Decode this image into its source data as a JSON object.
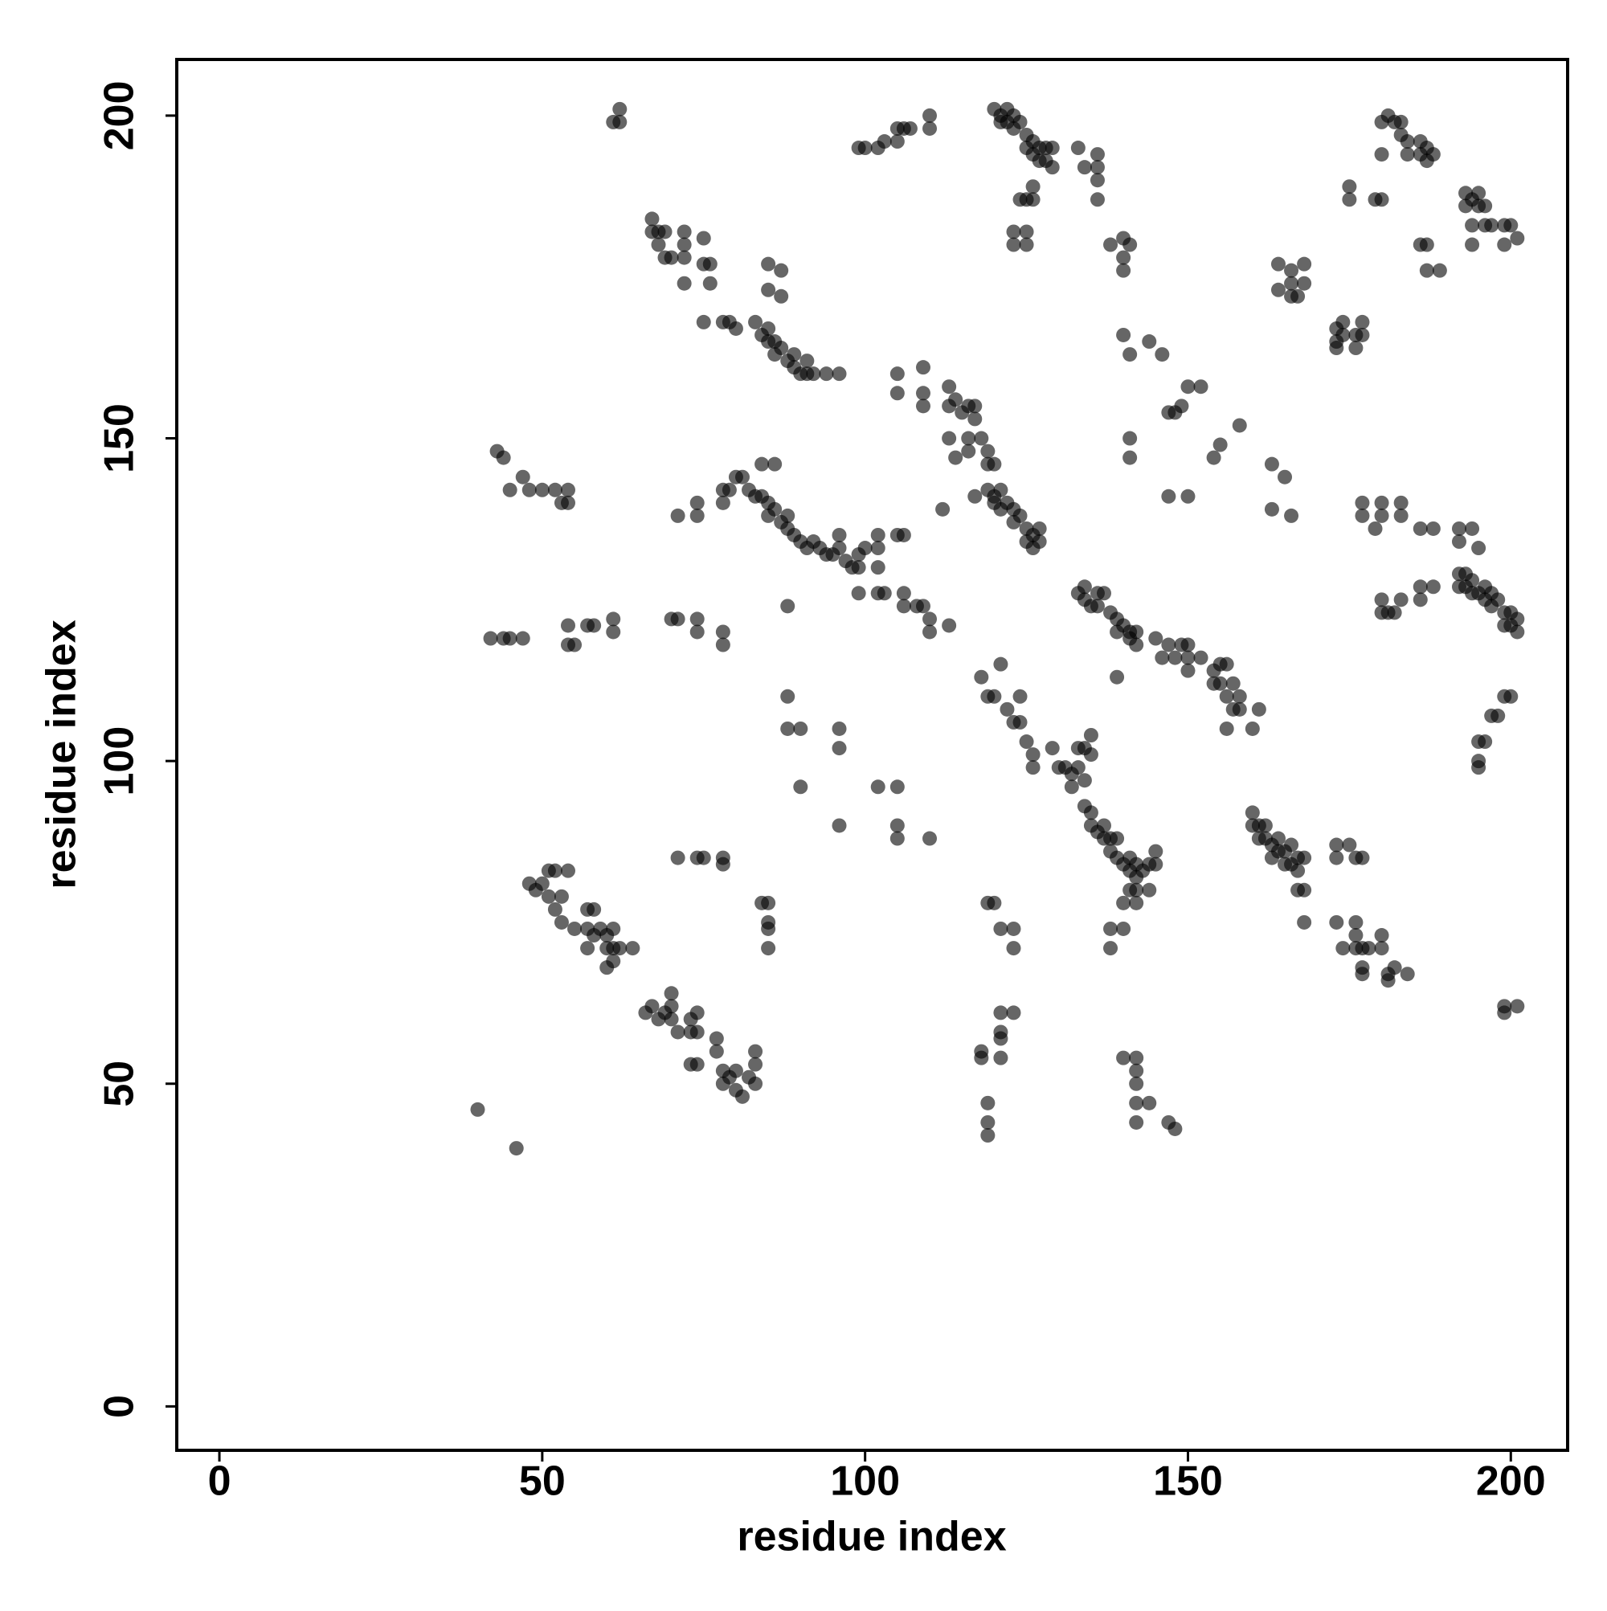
{
  "chart_data": {
    "type": "scatter",
    "xlabel": "residue index",
    "ylabel": "residue index",
    "color": "#000000",
    "alpha": 0.6,
    "xlim": [
      -6.6,
      208.8
    ],
    "ylim": [
      -6.8,
      208.7
    ],
    "xticks": [
      0,
      50,
      100,
      150,
      200
    ],
    "yticks": [
      0,
      50,
      100,
      150,
      200
    ],
    "x": [
      40,
      46,
      48,
      49,
      50,
      51,
      51,
      52,
      52,
      53,
      54,
      53,
      55,
      57,
      58,
      57,
      58,
      57,
      59,
      60,
      60,
      61,
      61,
      62,
      64,
      60,
      61,
      66,
      67,
      68,
      69,
      70,
      70,
      70,
      71,
      73,
      73,
      74,
      74,
      73,
      74,
      77,
      77,
      78,
      78,
      79,
      80,
      80,
      81,
      82,
      83,
      83,
      83,
      42,
      44,
      45,
      47,
      54,
      54,
      55,
      57,
      58,
      61,
      61,
      70,
      71,
      74,
      74,
      78,
      78,
      43,
      44,
      45,
      47,
      48,
      50,
      52,
      53,
      54,
      54,
      62,
      61,
      62,
      71,
      74,
      75,
      78,
      78,
      84,
      85,
      85,
      85,
      85,
      71,
      74,
      74,
      78,
      78,
      79,
      80,
      81,
      82,
      83,
      84,
      84,
      85,
      85,
      86,
      86,
      87,
      88,
      88,
      89,
      90,
      91,
      92,
      93,
      94,
      95,
      96,
      96,
      97,
      98,
      99,
      99,
      100,
      102,
      102,
      102,
      105,
      106,
      99,
      102,
      103,
      106,
      106,
      108,
      109,
      110,
      110,
      113,
      88,
      88,
      88,
      90,
      96,
      96,
      90,
      96,
      102,
      105,
      105,
      105,
      110,
      67,
      67,
      68,
      68,
      69,
      69,
      70,
      72,
      72,
      72,
      72,
      75,
      75,
      76,
      76,
      75,
      78,
      79,
      80,
      83,
      84,
      85,
      85,
      86,
      86,
      87,
      88,
      89,
      89,
      90,
      91,
      91,
      92,
      94,
      96,
      85,
      85,
      87,
      87,
      99,
      100,
      102,
      103,
      105,
      105,
      106,
      107,
      110,
      110,
      105,
      105,
      109,
      109,
      109,
      113,
      113,
      114,
      115,
      116,
      117,
      117,
      113,
      114,
      116,
      116,
      118,
      119,
      119,
      120,
      117,
      112,
      119,
      120,
      120,
      121,
      121,
      122,
      123,
      123,
      124,
      125,
      125,
      126,
      126,
      127,
      127,
      120,
      121,
      121,
      122,
      122,
      123,
      123,
      124,
      125,
      125,
      126,
      126,
      127,
      127,
      128,
      128,
      129,
      124,
      125,
      126,
      126,
      129,
      133,
      134,
      136,
      136,
      136,
      136,
      123,
      123,
      125,
      125,
      138,
      140,
      140,
      140,
      141,
      140,
      141,
      144,
      146,
      147,
      148,
      149,
      150,
      152,
      141,
      141,
      147,
      150,
      154,
      155,
      158,
      163,
      165,
      163,
      166,
      133,
      134,
      134,
      135,
      136,
      136,
      137,
      138,
      139,
      139,
      140,
      141,
      141,
      142,
      142,
      139,
      145,
      146,
      147,
      148,
      149,
      150,
      150,
      150,
      152,
      154,
      154,
      155,
      155,
      156,
      156,
      157,
      157,
      158,
      158,
      156,
      160,
      161,
      118,
      119,
      120,
      121,
      122,
      123,
      124,
      124,
      125,
      126,
      126,
      129,
      130,
      131,
      132,
      132,
      133,
      133,
      134,
      134,
      135,
      135,
      134,
      135,
      135,
      136,
      137,
      137,
      138,
      138,
      139,
      139,
      140,
      141,
      141,
      142,
      142,
      143,
      144,
      144,
      145,
      145,
      160,
      160,
      161,
      161,
      162,
      162,
      163,
      163,
      164,
      164,
      165,
      165,
      166,
      166,
      167,
      167,
      167,
      168,
      168,
      168,
      173,
      173,
      175,
      176,
      177,
      119,
      120,
      121,
      123,
      123,
      138,
      138,
      140,
      140,
      141,
      142,
      142,
      121,
      121,
      121,
      123,
      118,
      118,
      121,
      140,
      142,
      142,
      142,
      142,
      144,
      142,
      147,
      148,
      119,
      119,
      119,
      173,
      174,
      176,
      176,
      176,
      177,
      178,
      177,
      177,
      180,
      180,
      181,
      181,
      182,
      184,
      164,
      164,
      166,
      166,
      166,
      167,
      168,
      168,
      173,
      173,
      174,
      174,
      176,
      177,
      177,
      176,
      173,
      175,
      175,
      179,
      180,
      180,
      180,
      181,
      182,
      183,
      183,
      184,
      184,
      186,
      186,
      187,
      187,
      188,
      186,
      187,
      187,
      189,
      193,
      193,
      194,
      195,
      195,
      196,
      194,
      194,
      196,
      197,
      199,
      200,
      199,
      201,
      177,
      177,
      180,
      180,
      179,
      183,
      183,
      186,
      188,
      192,
      192,
      194,
      195,
      180,
      180,
      181,
      182,
      183,
      186,
      186,
      188,
      192,
      192,
      193,
      193,
      194,
      194,
      195,
      196,
      196,
      197,
      197,
      198,
      199,
      199,
      200,
      200,
      201,
      201,
      195,
      195,
      195,
      196,
      197,
      198,
      199,
      200,
      199,
      199,
      201
    ],
    "values": [
      46,
      40,
      81,
      80,
      81,
      79,
      83,
      83,
      77,
      79,
      83,
      75,
      74,
      77,
      77,
      74,
      73,
      71,
      74,
      73,
      71,
      71,
      74,
      71,
      71,
      68,
      69,
      61,
      62,
      60,
      61,
      60,
      62,
      64,
      58,
      60,
      58,
      58,
      61,
      53,
      53,
      57,
      55,
      52,
      50,
      51,
      49,
      52,
      48,
      51,
      50,
      53,
      55,
      119,
      119,
      119,
      119,
      121,
      118,
      118,
      121,
      121,
      120,
      122,
      122,
      122,
      122,
      120,
      120,
      118,
      148,
      147,
      142,
      144,
      142,
      142,
      142,
      140,
      142,
      140,
      201,
      199,
      199,
      85,
      85,
      85,
      85,
      84,
      78,
      78,
      75,
      74,
      71,
      138,
      140,
      138,
      140,
      142,
      142,
      144,
      144,
      142,
      141,
      146,
      141,
      140,
      138,
      146,
      139,
      137,
      138,
      136,
      135,
      134,
      133,
      134,
      133,
      132,
      132,
      133,
      135,
      131,
      130,
      130,
      132,
      133,
      133,
      130,
      135,
      135,
      135,
      126,
      126,
      126,
      126,
      124,
      124,
      124,
      122,
      120,
      121,
      124,
      110,
      105,
      105,
      105,
      102,
      96,
      90,
      96,
      96,
      90,
      88,
      88,
      184,
      182,
      182,
      180,
      178,
      182,
      178,
      182,
      180,
      178,
      174,
      181,
      177,
      177,
      174,
      168,
      168,
      168,
      167,
      168,
      166,
      167,
      165,
      165,
      163,
      164,
      162,
      163,
      161,
      160,
      162,
      160,
      160,
      160,
      160,
      177,
      173,
      176,
      172,
      195,
      195,
      195,
      196,
      196,
      198,
      198,
      198,
      198,
      200,
      157,
      160,
      157,
      155,
      161,
      158,
      155,
      156,
      154,
      155,
      155,
      153,
      150,
      147,
      150,
      148,
      150,
      148,
      146,
      146,
      141,
      139,
      142,
      141,
      140,
      142,
      139,
      140,
      139,
      137,
      138,
      136,
      134,
      135,
      133,
      134,
      136,
      201,
      200,
      199,
      201,
      199,
      198,
      200,
      199,
      197,
      195,
      196,
      194,
      195,
      193,
      195,
      193,
      192,
      187,
      187,
      187,
      189,
      195,
      195,
      192,
      194,
      192,
      190,
      187,
      182,
      180,
      182,
      180,
      180,
      181,
      178,
      176,
      180,
      166,
      163,
      165,
      163,
      154,
      154,
      155,
      158,
      158,
      150,
      147,
      141,
      141,
      147,
      149,
      152,
      146,
      144,
      139,
      138,
      126,
      125,
      127,
      124,
      126,
      124,
      126,
      123,
      122,
      120,
      121,
      120,
      119,
      118,
      120,
      113,
      119,
      116,
      118,
      116,
      118,
      118,
      116,
      114,
      116,
      114,
      112,
      115,
      112,
      110,
      115,
      112,
      108,
      110,
      108,
      105,
      105,
      108,
      113,
      110,
      110,
      115,
      108,
      106,
      110,
      106,
      103,
      101,
      99,
      102,
      99,
      99,
      98,
      96,
      99,
      102,
      102,
      97,
      104,
      101,
      93,
      92,
      90,
      89,
      90,
      88,
      88,
      86,
      88,
      85,
      84,
      85,
      83,
      82,
      84,
      83,
      84,
      80,
      86,
      84,
      92,
      90,
      90,
      88,
      90,
      88,
      87,
      85,
      88,
      86,
      86,
      84,
      87,
      84,
      85,
      83,
      80,
      85,
      80,
      75,
      87,
      85,
      87,
      85,
      85,
      78,
      78,
      74,
      74,
      71,
      74,
      71,
      74,
      78,
      80,
      78,
      80,
      61,
      58,
      57,
      61,
      55,
      54,
      54,
      54,
      54,
      52,
      50,
      47,
      47,
      44,
      44,
      43,
      47,
      44,
      42,
      75,
      71,
      75,
      73,
      71,
      71,
      71,
      68,
      67,
      73,
      71,
      67,
      66,
      68,
      67,
      177,
      173,
      176,
      174,
      172,
      172,
      177,
      174,
      167,
      165,
      166,
      168,
      166,
      166,
      168,
      164,
      164,
      189,
      187,
      187,
      187,
      194,
      199,
      200,
      199,
      199,
      197,
      196,
      194,
      196,
      194,
      195,
      193,
      194,
      180,
      180,
      176,
      176,
      188,
      186,
      187,
      188,
      186,
      186,
      183,
      180,
      183,
      183,
      183,
      183,
      180,
      181,
      140,
      138,
      140,
      138,
      136,
      140,
      138,
      136,
      136,
      136,
      134,
      136,
      133,
      125,
      123,
      123,
      123,
      125,
      127,
      125,
      127,
      129,
      127,
      129,
      127,
      128,
      126,
      126,
      127,
      125,
      126,
      124,
      125,
      123,
      121,
      123,
      121,
      122,
      120,
      103,
      100,
      99,
      103,
      107,
      107,
      110,
      110,
      62,
      61,
      62
    ]
  }
}
